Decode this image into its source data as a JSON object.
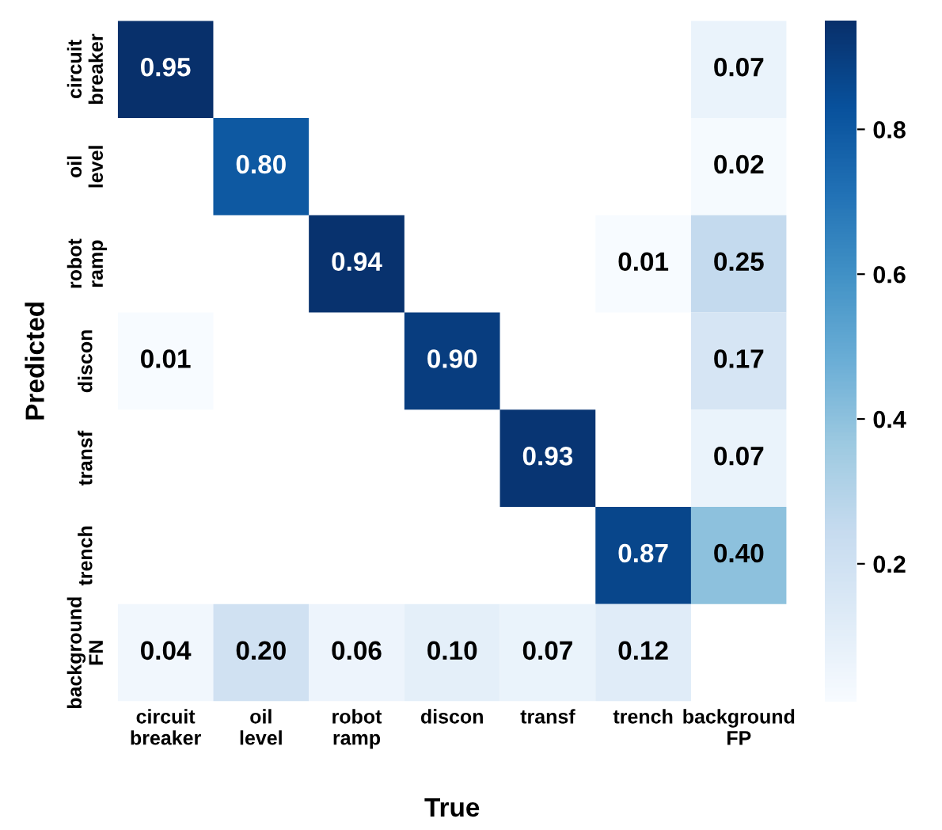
{
  "chart_data": {
    "type": "heatmap",
    "xlabel": "True",
    "ylabel": "Predicted",
    "categories": [
      "circuit\nbreaker",
      "oil\nlevel",
      "robot\nramp",
      "discon",
      "transf",
      "trench",
      "background\nFP"
    ],
    "y_categories": [
      "circuit\nbreaker",
      "oil\nlevel",
      "robot\nramp",
      "discon",
      "transf",
      "trench",
      "background\nFN"
    ],
    "cells": [
      [
        0.95,
        null,
        null,
        null,
        null,
        null,
        0.07
      ],
      [
        null,
        0.8,
        null,
        null,
        null,
        null,
        0.02
      ],
      [
        null,
        null,
        0.94,
        null,
        null,
        0.01,
        0.25
      ],
      [
        0.01,
        null,
        null,
        0.9,
        null,
        null,
        0.17
      ],
      [
        null,
        null,
        null,
        null,
        0.93,
        null,
        0.07
      ],
      [
        null,
        null,
        null,
        null,
        null,
        0.87,
        0.4
      ],
      [
        0.04,
        0.2,
        0.06,
        0.1,
        0.07,
        0.12,
        null
      ]
    ],
    "cell_labels": [
      [
        "0.95",
        null,
        null,
        null,
        null,
        null,
        "0.07"
      ],
      [
        null,
        "0.80",
        null,
        null,
        null,
        null,
        "0.02"
      ],
      [
        null,
        null,
        "0.94",
        null,
        null,
        "0.01",
        "0.25"
      ],
      [
        "0.01",
        null,
        null,
        "0.90",
        null,
        null,
        "0.17"
      ],
      [
        null,
        null,
        null,
        null,
        "0.93",
        null,
        "0.07"
      ],
      [
        null,
        null,
        null,
        null,
        null,
        "0.87",
        "0.40"
      ],
      [
        "0.04",
        "0.20",
        "0.06",
        "0.10",
        "0.07",
        "0.12",
        null
      ]
    ],
    "clim": [
      0.01,
      0.95
    ],
    "cticks": [
      0.2,
      0.4,
      0.6,
      0.8
    ]
  }
}
